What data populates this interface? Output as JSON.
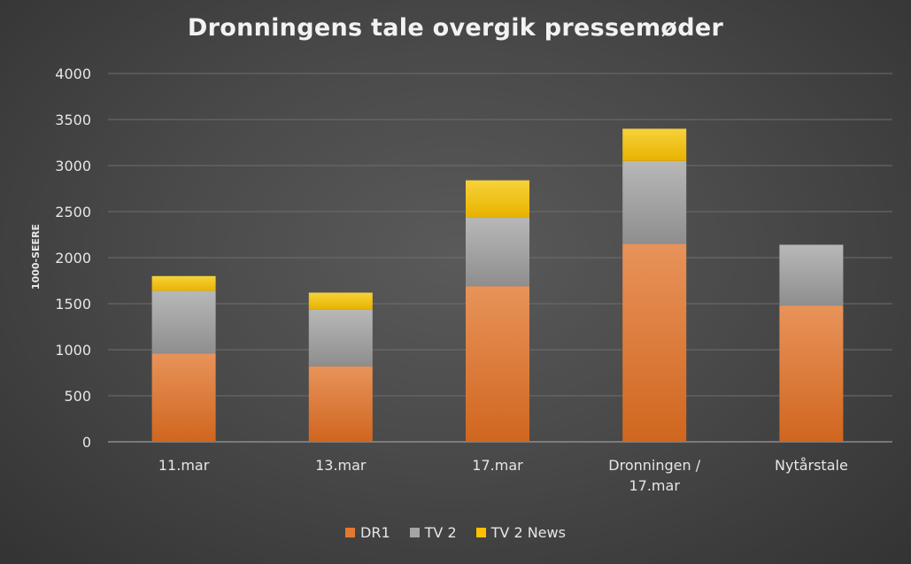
{
  "chart_data": {
    "type": "bar",
    "stacked": true,
    "title": "Dronningens tale overgik pressemøder",
    "ylabel": "1000-SEERE",
    "xlabel": "",
    "ylim": [
      0,
      4000
    ],
    "yticks": [
      "0",
      "500",
      "1000",
      "1500",
      "2000",
      "2500",
      "3000",
      "3500",
      "4000"
    ],
    "grid": true,
    "legend": "bottom",
    "categories": [
      [
        "11.mar"
      ],
      [
        "13.mar"
      ],
      [
        "17.mar"
      ],
      [
        "Dronningen /",
        "17.mar"
      ],
      [
        "Nytårstale"
      ]
    ],
    "series": [
      {
        "name": "DR1",
        "color": "#e07a32",
        "values": [
          960,
          820,
          1690,
          2150,
          1480
        ]
      },
      {
        "name": "TV 2",
        "color": "#a5a5a5",
        "values": [
          680,
          620,
          750,
          900,
          660
        ]
      },
      {
        "name": "TV 2 News",
        "color": "#ffc000",
        "values": [
          160,
          180,
          400,
          350,
          0
        ]
      }
    ]
  }
}
